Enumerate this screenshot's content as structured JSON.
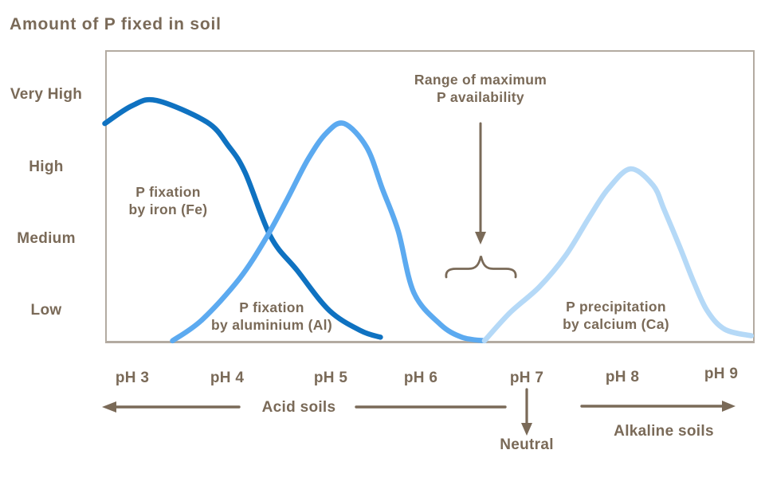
{
  "title": "Amount of P fixed in soil",
  "colors": {
    "text_brown": "#7a6a58",
    "plot_border": "#b3aba1",
    "fe_curve": "#0f72c1",
    "al_curve": "#5caaf0",
    "ca_curve": "#b5d9f7"
  },
  "y_axis": {
    "labels": [
      "Very High",
      "High",
      "Medium",
      "Low"
    ]
  },
  "x_axis": {
    "labels": [
      "pH 3",
      "pH 4",
      "pH 5",
      "pH 6",
      "pH 7",
      "pH 8",
      "pH 9"
    ]
  },
  "annotations": {
    "range_max": "Range of maximum\nP availability",
    "fe_label": "P fixation\nby iron (Fe)",
    "al_label": "P fixation\nby aluminium (Al)",
    "ca_label": "P precipitation\nby calcium (Ca)",
    "acid": "Acid soils",
    "neutral": "Neutral",
    "alkaline": "Alkaline soils"
  },
  "chart_data": {
    "type": "line",
    "title": "Amount of P fixed in soil",
    "xlabel": "pH",
    "ylabel": "Amount of P fixed in soil",
    "x_ticks": [
      "pH 3",
      "pH 4",
      "pH 5",
      "pH 6",
      "pH 7",
      "pH 8",
      "pH 9"
    ],
    "x_range": [
      2.7,
      9.35
    ],
    "y_ticks": [
      "Low",
      "Medium",
      "High",
      "Very High"
    ],
    "value_scale": {
      "Low": 1,
      "Medium": 2,
      "High": 3,
      "Very High": 4
    },
    "grid": false,
    "legend": "labels drawn beside curves",
    "notes": "Maximum P availability occurs around pH 6.5; acid soils below pH 7 (neutral), alkaline soils above",
    "series": [
      {
        "id": "fe",
        "name": "P fixation by iron (Fe)",
        "color": "#0f72c1",
        "points": [
          [
            2.72,
            3.6
          ],
          [
            3.0,
            3.85
          ],
          [
            3.25,
            3.92
          ],
          [
            3.76,
            3.62
          ],
          [
            3.98,
            3.29
          ],
          [
            4.15,
            2.92
          ],
          [
            4.41,
            2.03
          ],
          [
            4.68,
            1.56
          ],
          [
            5.01,
            1.0
          ],
          [
            5.33,
            0.72
          ],
          [
            5.53,
            0.63
          ]
        ]
      },
      {
        "id": "al",
        "name": "P fixation by aluminium (Al)",
        "color": "#5caaf0",
        "points": [
          [
            3.41,
            0.58
          ],
          [
            3.71,
            0.87
          ],
          [
            4.09,
            1.44
          ],
          [
            4.36,
            2.0
          ],
          [
            4.58,
            2.55
          ],
          [
            4.79,
            3.1
          ],
          [
            4.98,
            3.47
          ],
          [
            5.16,
            3.6
          ],
          [
            5.39,
            3.27
          ],
          [
            5.55,
            2.69
          ],
          [
            5.71,
            2.11
          ],
          [
            5.87,
            1.25
          ],
          [
            6.14,
            0.81
          ],
          [
            6.36,
            0.63
          ],
          [
            6.59,
            0.58
          ]
        ]
      },
      {
        "id": "ca",
        "name": "P precipitation by calcium (Ca)",
        "color": "#b5d9f7",
        "points": [
          [
            6.59,
            0.58
          ],
          [
            6.85,
            0.97
          ],
          [
            7.15,
            1.33
          ],
          [
            7.42,
            1.77
          ],
          [
            7.66,
            2.3
          ],
          [
            7.85,
            2.69
          ],
          [
            8.08,
            2.97
          ],
          [
            8.31,
            2.74
          ],
          [
            8.42,
            2.41
          ],
          [
            8.58,
            1.89
          ],
          [
            8.72,
            1.41
          ],
          [
            8.86,
            1.0
          ],
          [
            9.04,
            0.74
          ],
          [
            9.31,
            0.65
          ]
        ]
      }
    ]
  }
}
